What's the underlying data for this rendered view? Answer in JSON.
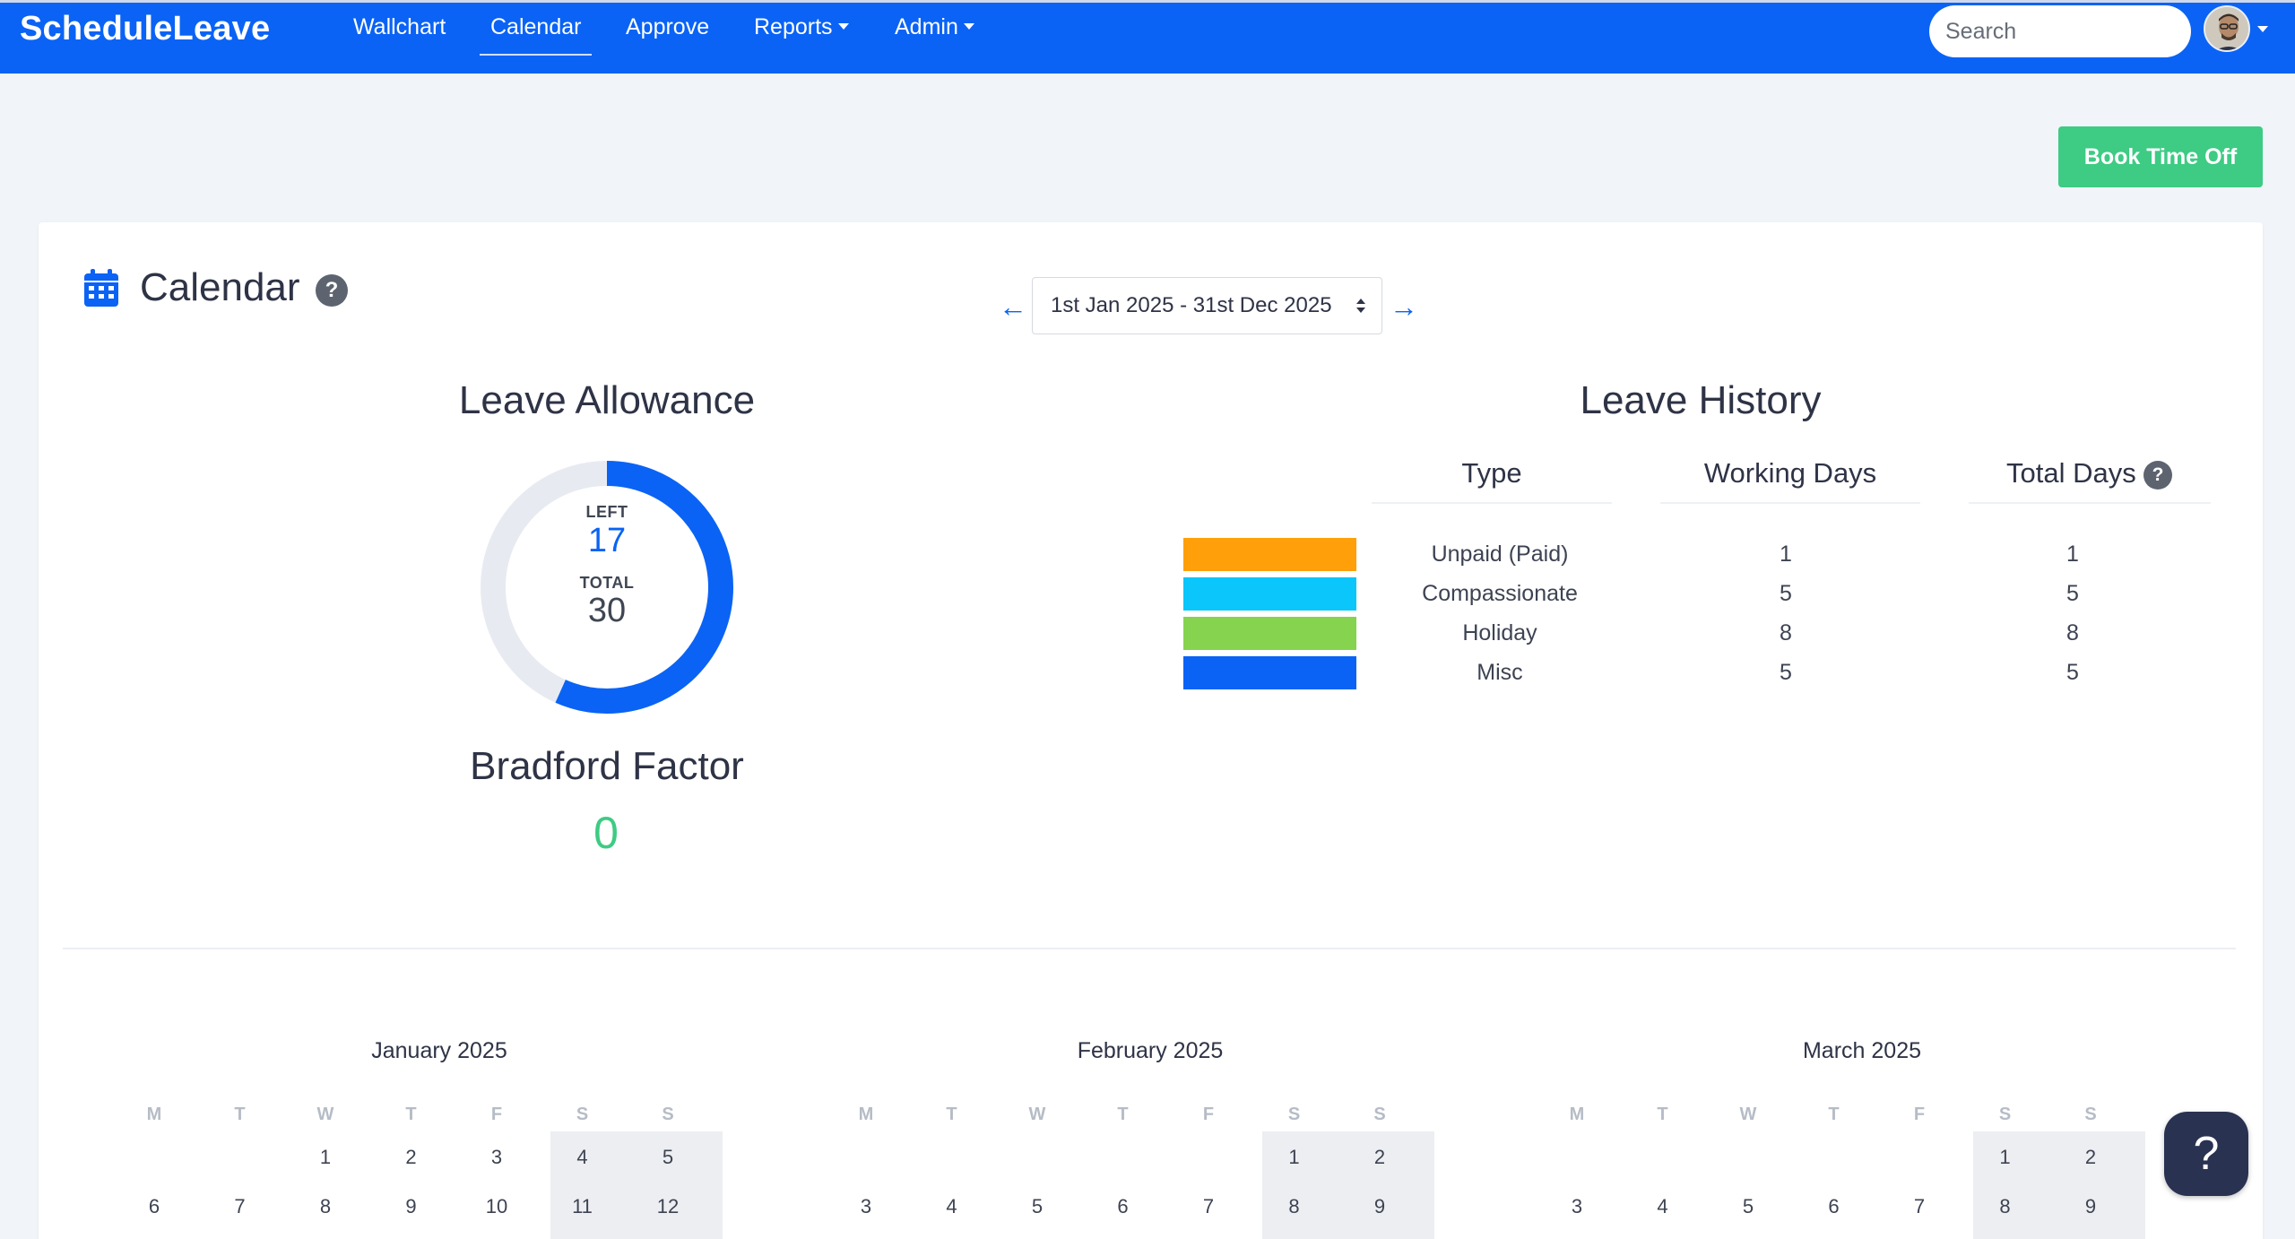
{
  "nav": {
    "brand": "ScheduleLeave",
    "links": [
      "Wallchart",
      "Calendar",
      "Approve",
      "Reports",
      "Admin"
    ],
    "active": "Calendar",
    "search_placeholder": "Search"
  },
  "actions": {
    "book_time_off": "Book Time Off"
  },
  "calendar": {
    "title": "Calendar",
    "help": "?",
    "date_range": "1st Jan 2025 - 31st Dec 2025",
    "prev_icon": "arrow-left-icon",
    "next_icon": "arrow-right-icon"
  },
  "allowance": {
    "title": "Leave Allowance",
    "left_label": "LEFT",
    "left": 17,
    "total_label": "TOTAL",
    "total": 30,
    "bradford_title": "Bradford Factor",
    "bradford_value": 0
  },
  "history": {
    "title": "Leave History",
    "headers": [
      "Type",
      "Working Days",
      "Total Days"
    ],
    "help": "?",
    "rows": [
      {
        "type": "Unpaid (Paid)",
        "working": 1,
        "total": 1,
        "color": "#ff9f0a"
      },
      {
        "type": "Compassionate",
        "working": 5,
        "total": 5,
        "color": "#0bc6fa"
      },
      {
        "type": "Holiday",
        "working": 8,
        "total": 8,
        "color": "#86d34f"
      },
      {
        "type": "Misc",
        "working": 5,
        "total": 5,
        "color": "#0a63f5"
      }
    ]
  },
  "months": [
    {
      "title": "January 2025",
      "dow": [
        "M",
        "T",
        "W",
        "T",
        "F",
        "S",
        "S"
      ],
      "week1": [
        "",
        "",
        "1",
        "2",
        "3",
        "4",
        "5"
      ],
      "week2": [
        "6",
        "7",
        "8",
        "9",
        "10",
        "11",
        "12"
      ]
    },
    {
      "title": "February 2025",
      "dow": [
        "M",
        "T",
        "W",
        "T",
        "F",
        "S",
        "S"
      ],
      "week1": [
        "",
        "",
        "",
        "",
        "",
        "1",
        "2"
      ],
      "week2": [
        "3",
        "4",
        "5",
        "6",
        "7",
        "8",
        "9"
      ]
    },
    {
      "title": "March 2025",
      "dow": [
        "M",
        "T",
        "W",
        "T",
        "F",
        "S",
        "S"
      ],
      "week1": [
        "",
        "",
        "",
        "",
        "",
        "1",
        "2"
      ],
      "week2": [
        "3",
        "4",
        "5",
        "6",
        "7",
        "8",
        "9"
      ]
    }
  ],
  "help_fab": "?"
}
